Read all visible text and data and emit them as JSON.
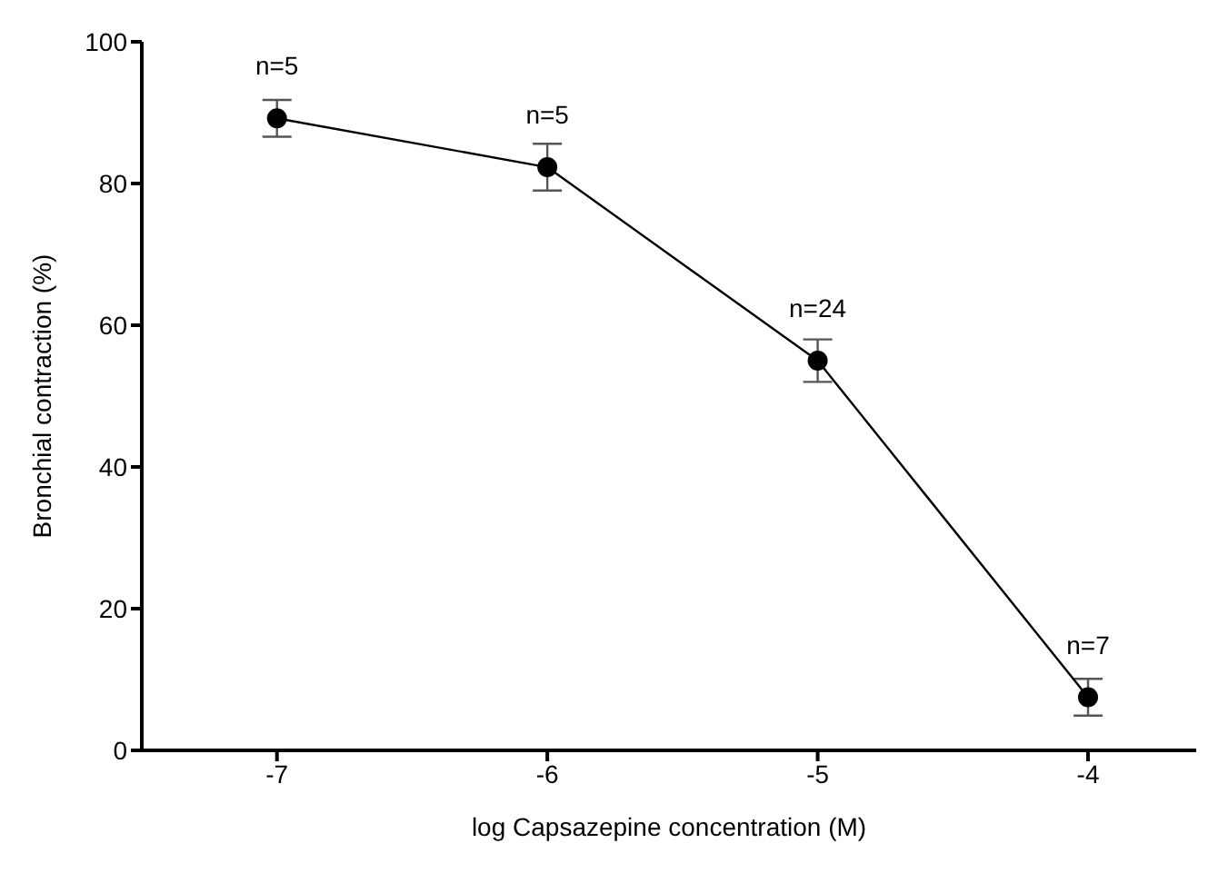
{
  "chart_data": {
    "type": "line",
    "xlabel": "log Capsazepine concentration (M)",
    "ylabel": "Bronchial contraction (%)",
    "x": [
      -7,
      -6,
      -5,
      -4
    ],
    "series": [
      {
        "color": "#000000",
        "values": [
          89.2,
          82.3,
          55,
          7.5
        ],
        "errors": [
          2.6,
          3.3,
          3,
          2.6
        ]
      }
    ],
    "xlim": [
      -7.5,
      -3.6
    ],
    "xticks": [
      -7,
      -6,
      -5,
      -4
    ],
    "ylim": [
      0,
      100
    ],
    "yticks": [
      0,
      20,
      40,
      60,
      80,
      100
    ],
    "marker": "circle",
    "line_style": "solid",
    "grid": false,
    "legend": false,
    "annotations": [
      {
        "text": "n=5",
        "x": -7,
        "y": 89.2
      },
      {
        "text": "n=5",
        "x": -6,
        "y": 82.3
      },
      {
        "text": "n=24",
        "x": -5,
        "y": 55
      },
      {
        "text": "n=7",
        "x": -4,
        "y": 7.5
      }
    ]
  }
}
